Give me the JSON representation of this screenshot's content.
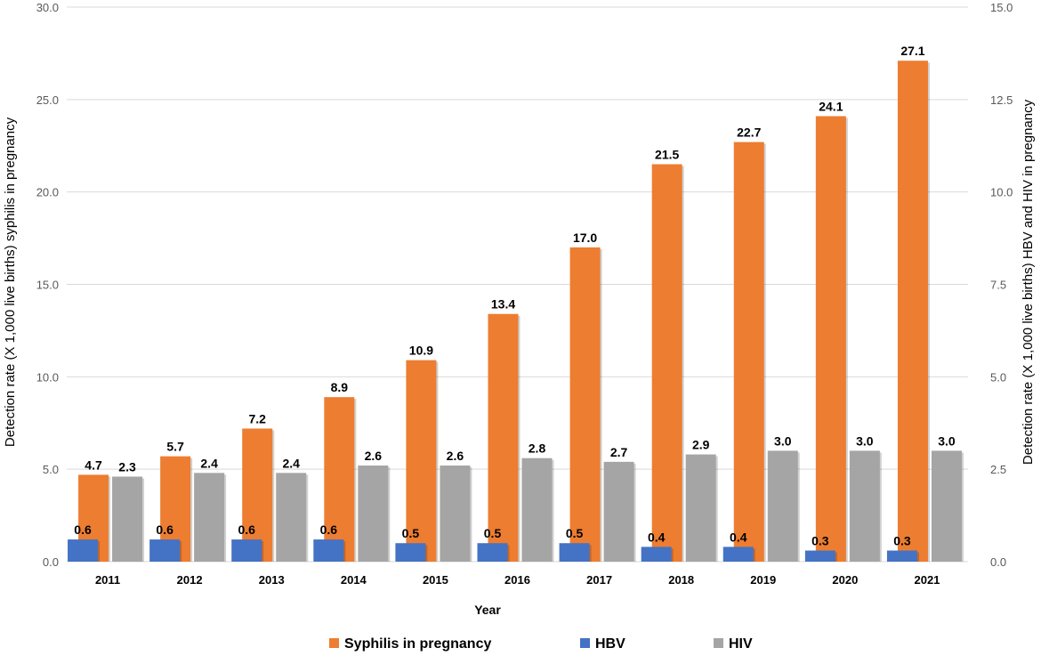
{
  "chart_data": {
    "type": "bar",
    "categories": [
      "2011",
      "2012",
      "2013",
      "2014",
      "2015",
      "2016",
      "2017",
      "2018",
      "2019",
      "2020",
      "2021"
    ],
    "series": [
      {
        "name": "Syphilis in pregnancy",
        "axis": "left",
        "color": "#ED7D31",
        "values": [
          4.7,
          5.7,
          7.2,
          8.9,
          10.9,
          13.4,
          17.0,
          21.5,
          22.7,
          24.1,
          27.1
        ],
        "labels": [
          "4.7",
          "5.7",
          "7.2",
          "8.9",
          "10.9",
          "13.4",
          "17.0",
          "21.5",
          "22.7",
          "24.1",
          "27.1"
        ]
      },
      {
        "name": "HBV",
        "axis": "right",
        "color": "#4472C4",
        "values": [
          0.6,
          0.6,
          0.6,
          0.6,
          0.5,
          0.5,
          0.5,
          0.4,
          0.4,
          0.3,
          0.3
        ],
        "labels": [
          "0.6",
          "0.6",
          "0.6",
          "0.6",
          "0.5",
          "0.5",
          "0.5",
          "0.4",
          "0.4",
          "0.3",
          "0.3"
        ]
      },
      {
        "name": "HIV",
        "axis": "right",
        "color": "#A5A5A5",
        "values": [
          2.3,
          2.4,
          2.4,
          2.6,
          2.6,
          2.8,
          2.7,
          2.9,
          3.0,
          3.0,
          3.0
        ],
        "labels": [
          "2.3",
          "2.4",
          "2.4",
          "2.6",
          "2.6",
          "2.8",
          "2.7",
          "2.9",
          "3.0",
          "3.0",
          "3.0"
        ]
      }
    ],
    "left_axis": {
      "label": "Detection rate (X 1,000 live births) syphilis in pregnancy",
      "ylim": [
        0,
        30
      ],
      "ticks": [
        0,
        5,
        10,
        15,
        20,
        25,
        30
      ],
      "tick_labels": [
        "0.0",
        "5.0",
        "10.0",
        "15.0",
        "20.0",
        "25.0",
        "30.0"
      ]
    },
    "right_axis": {
      "label": "Detection rate (X 1,000 live births) HBV and HIV in pregnancy",
      "ylim": [
        0,
        15
      ],
      "ticks": [
        0,
        2.5,
        5,
        7.5,
        10,
        12.5,
        15
      ],
      "tick_labels": [
        "0.0",
        "2.5",
        "5.0",
        "7.5",
        "10.0",
        "12.5",
        "15.0"
      ]
    },
    "xlabel": "Year",
    "grid": true,
    "legend_position": "bottom"
  }
}
